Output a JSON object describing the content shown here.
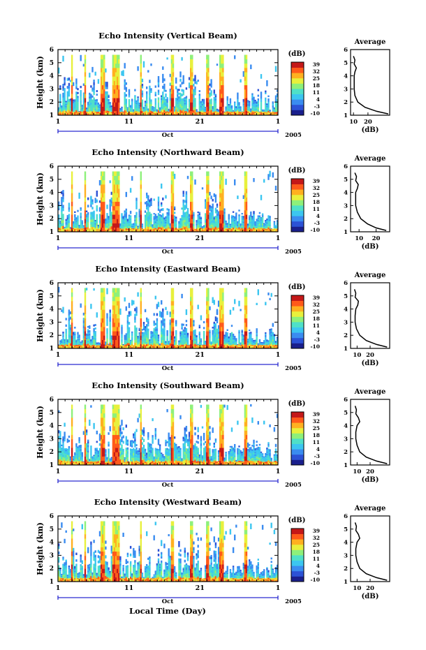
{
  "figure": {
    "colorbar_unit": "(dB)",
    "colorbar_ticks": [
      "39",
      "32",
      "25",
      "18",
      "11",
      "4",
      "-3",
      "-10"
    ],
    "colorscale": [
      "#1a1f8c",
      "#2c52d6",
      "#3a8cf0",
      "#3cc6f0",
      "#4fe0c8",
      "#8ef07a",
      "#e8f03c",
      "#ffb020",
      "#ff5a1a",
      "#c41818"
    ],
    "xaxis_ticks": [
      "1",
      "11",
      "21",
      "1"
    ],
    "xaxis_month": "Oct",
    "xaxis_year": "2005",
    "xlabel": "Local Time (Day)",
    "ylabel": "Height (km)",
    "yticks": [
      "1",
      "2",
      "3",
      "4",
      "5",
      "6"
    ],
    "avg_title": "Average",
    "avg_xlabel": "(dB)"
  },
  "chart_data": [
    {
      "type": "heatmap",
      "title": "Echo Intensity (Vertical Beam)",
      "ylabel": "Height (km)",
      "ylim": [
        1,
        6
      ],
      "x_ticks": [
        "1",
        "11",
        "21",
        "1"
      ],
      "colorbar_range_dB": [
        -10,
        39
      ],
      "profile": {
        "title": "Average",
        "xlabel": "(dB)",
        "xticks": [
          "10",
          "20"
        ],
        "xlim": [
          8,
          35
        ],
        "height_km": [
          1.1,
          1.3,
          1.6,
          2.0,
          2.5,
          3.0,
          3.5,
          4.0,
          4.3,
          4.6,
          4.9,
          5.2,
          5.5
        ],
        "value_dB": [
          34,
          26,
          18,
          13,
          11,
          10.5,
          10.5,
          10.5,
          11,
          12,
          10.5,
          11,
          10
        ]
      }
    },
    {
      "type": "heatmap",
      "title": "Echo Intensity (Northward Beam)",
      "ylabel": "Height (km)",
      "ylim": [
        1,
        6
      ],
      "x_ticks": [
        "1",
        "11",
        "21",
        "1"
      ],
      "colorbar_range_dB": [
        -10,
        39
      ],
      "profile": {
        "title": "Average",
        "xlabel": "(dB)",
        "xticks": [
          "10",
          "20"
        ],
        "xlim": [
          5,
          28
        ],
        "height_km": [
          1.1,
          1.3,
          1.6,
          2.0,
          2.5,
          3.0,
          3.5,
          4.0,
          4.3,
          4.6,
          4.9,
          5.2,
          5.5
        ],
        "value_dB": [
          26,
          20,
          15,
          11,
          9,
          8,
          8,
          8,
          9,
          9.5,
          8,
          8.5,
          7.5
        ]
      }
    },
    {
      "type": "heatmap",
      "title": "Echo Intensity (Eastward Beam)",
      "ylabel": "Height (km)",
      "ylim": [
        1,
        6
      ],
      "x_ticks": [
        "1",
        "11",
        "21",
        "1"
      ],
      "colorbar_range_dB": [
        -10,
        39
      ],
      "profile": {
        "title": "Average",
        "xlabel": "(dB)",
        "xticks": [
          "10",
          "20"
        ],
        "xlim": [
          5,
          35
        ],
        "height_km": [
          1.1,
          1.3,
          1.6,
          2.0,
          2.5,
          3.0,
          3.5,
          4.0,
          4.3,
          4.6,
          4.9,
          5.2,
          5.5
        ],
        "value_dB": [
          33,
          25,
          17,
          12,
          9.5,
          8.5,
          8.5,
          9,
          10.5,
          11,
          8.5,
          9,
          8
        ]
      }
    },
    {
      "type": "heatmap",
      "title": "Echo Intensity (Southward Beam)",
      "ylabel": "Height (km)",
      "ylim": [
        1,
        6
      ],
      "x_ticks": [
        "1",
        "11",
        "21",
        "1"
      ],
      "colorbar_range_dB": [
        -10,
        39
      ],
      "profile": {
        "title": "Average",
        "xlabel": "(dB)",
        "xticks": [
          "10",
          "20"
        ],
        "xlim": [
          5,
          35
        ],
        "height_km": [
          1.1,
          1.3,
          1.6,
          2.0,
          2.5,
          3.0,
          3.5,
          4.0,
          4.3,
          4.6,
          4.9,
          5.2,
          5.5
        ],
        "value_dB": [
          33,
          25,
          17,
          12,
          10,
          9,
          9,
          10,
          12,
          11,
          9,
          9.5,
          8.5
        ]
      }
    },
    {
      "type": "heatmap",
      "title": "Echo Intensity (Westward Beam)",
      "ylabel": "Height (km)",
      "ylim": [
        1,
        6
      ],
      "x_ticks": [
        "1",
        "11",
        "21",
        "1"
      ],
      "colorbar_range_dB": [
        -10,
        39
      ],
      "profile": {
        "title": "Average",
        "xlabel": "(dB)",
        "xticks": [
          "10",
          "20"
        ],
        "xlim": [
          5,
          35
        ],
        "height_km": [
          1.1,
          1.3,
          1.6,
          2.0,
          2.5,
          3.0,
          3.5,
          4.0,
          4.3,
          4.6,
          4.9,
          5.2,
          5.5
        ],
        "value_dB": [
          33,
          25,
          17,
          12,
          10,
          9,
          9,
          10,
          12,
          11,
          9,
          9.5,
          8.5
        ]
      }
    }
  ]
}
